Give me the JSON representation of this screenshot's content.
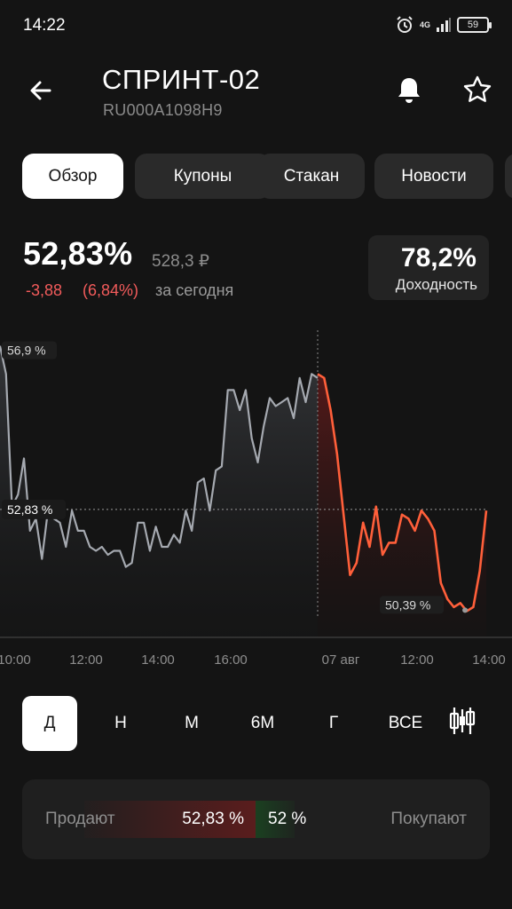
{
  "status_bar": {
    "time": "14:22",
    "network": "4G",
    "battery": "59"
  },
  "header": {
    "title": "СПРИНТ-02",
    "isin": "RU000A1098H9"
  },
  "tabs": [
    {
      "label": "Обзор",
      "active": true
    },
    {
      "label": "Купоны",
      "active": false
    },
    {
      "label": "Стакан",
      "active": false
    },
    {
      "label": "Новости",
      "active": false
    }
  ],
  "quote": {
    "price": "52,83%",
    "price_rub": "528,3 ₽",
    "change_abs": "-3,88",
    "change_pct": "(6,84%)",
    "change_label": "за сегодня",
    "yield_value": "78,2%",
    "yield_label": "Доходность"
  },
  "chart": {
    "max_label": "56,9 %",
    "current_label": "52,83 %",
    "min_label": "50,39 %",
    "x_labels": [
      "10:00",
      "12:00",
      "14:00",
      "16:00",
      "07 авг",
      "12:00",
      "14:00"
    ]
  },
  "chart_data": {
    "type": "line",
    "y_unit": "%",
    "previous_day": {
      "color": "#a5a9b0",
      "values": [
        56.9,
        56.2,
        52.9,
        53.2,
        54.1,
        52.3,
        52.6,
        51.6,
        52.8,
        52.6,
        52.5,
        51.9,
        52.8,
        52.3,
        52.3,
        51.9,
        51.8,
        51.9,
        51.7,
        51.8,
        51.8,
        51.4,
        51.5,
        52.5,
        52.5,
        51.8,
        52.4,
        51.9,
        51.9,
        52.2,
        52.0,
        52.8,
        52.3,
        53.5,
        53.6,
        52.8,
        53.8,
        53.9,
        55.8,
        55.8,
        55.3,
        55.8,
        54.6,
        54.0,
        54.9,
        55.6,
        55.4,
        55.5,
        55.6,
        55.1,
        56.1,
        55.5,
        56.2,
        56.1
      ]
    },
    "today": {
      "color": "#ff5f3a",
      "values": [
        56.2,
        56.1,
        55.3,
        54.2,
        52.7,
        51.2,
        51.5,
        52.5,
        51.9,
        52.9,
        51.7,
        52.0,
        52.0,
        52.7,
        52.6,
        52.3,
        52.8,
        52.6,
        52.3,
        51.0,
        50.6,
        50.4,
        50.5,
        50.3,
        50.4,
        51.3,
        52.8
      ]
    },
    "current": 52.83,
    "max": 56.9,
    "min": 50.39,
    "ylim": [
      50.0,
      57.2
    ],
    "x_tick_labels": [
      "10:00",
      "12:00",
      "14:00",
      "16:00",
      "07 авг",
      "12:00",
      "14:00"
    ],
    "grid": false
  },
  "periods": [
    {
      "label": "Д",
      "active": true
    },
    {
      "label": "Н",
      "active": false
    },
    {
      "label": "М",
      "active": false
    },
    {
      "label": "6М",
      "active": false
    },
    {
      "label": "Г",
      "active": false
    },
    {
      "label": "ВСЕ",
      "active": false
    }
  ],
  "order_book": {
    "sell_label": "Продают",
    "sell_price": "52,83 %",
    "buy_price": "52 %",
    "buy_label": "Покупают"
  }
}
